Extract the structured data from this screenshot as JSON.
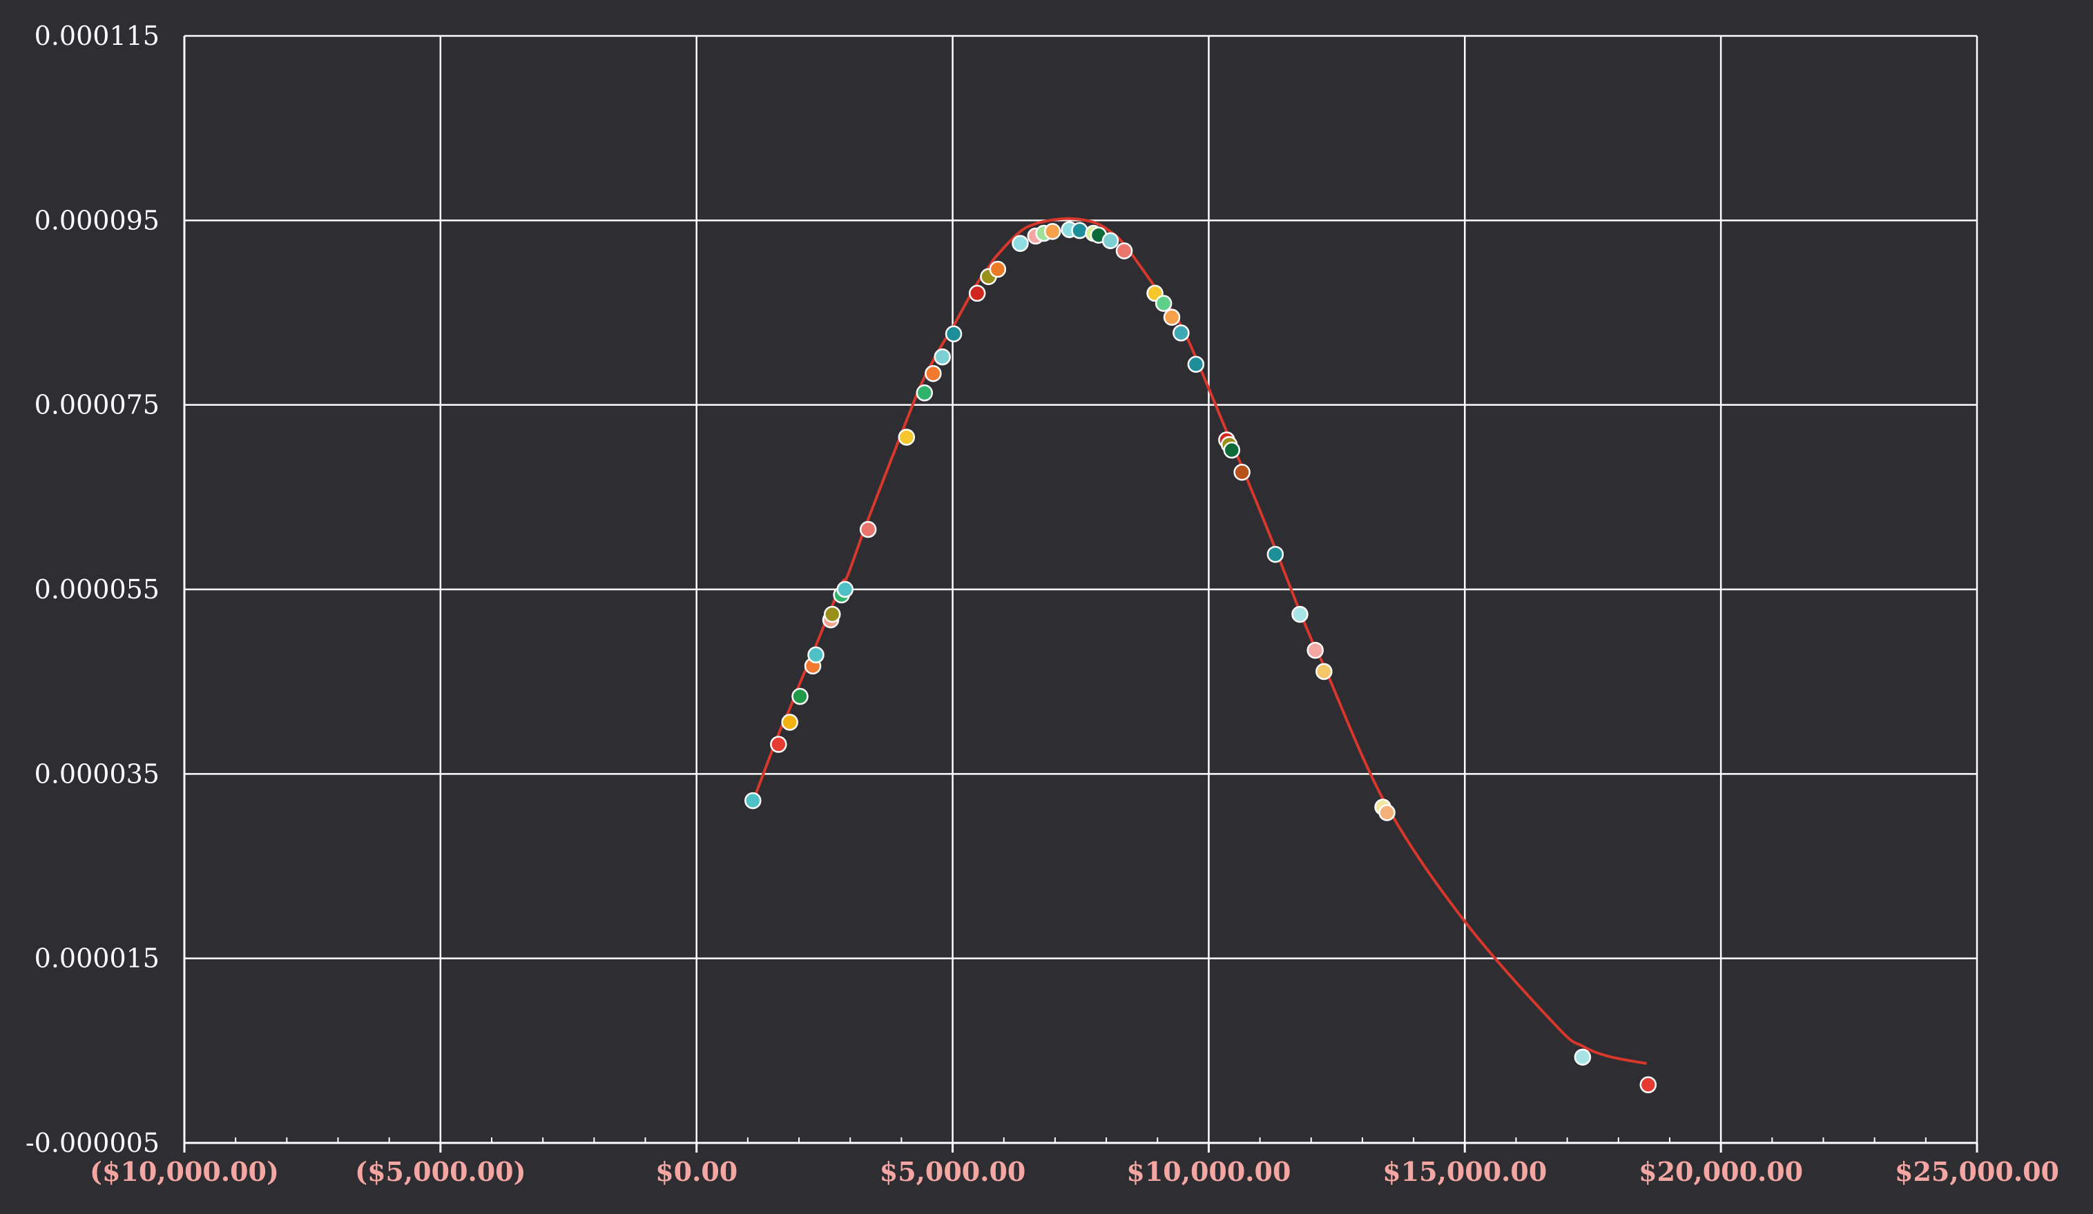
{
  "chart_data": {
    "type": "scatter",
    "title": "",
    "xlabel": "",
    "ylabel": "",
    "xlim": [
      -10000,
      25000
    ],
    "ylim": [
      -5e-06,
      0.000115
    ],
    "x_ticks": [
      -10000,
      -5000,
      0,
      5000,
      10000,
      15000,
      20000,
      25000
    ],
    "x_tick_labels": [
      "($10,000.00)",
      "($5,000.00)",
      "$0.00",
      "$5,000.00",
      "$10,000.00",
      "$15,000.00",
      "$20,000.00",
      "$25,000.00"
    ],
    "y_ticks": [
      -5e-06,
      1.5e-05,
      3.5e-05,
      5.5e-05,
      7.5e-05,
      9.5e-05,
      0.000115
    ],
    "y_tick_labels": [
      "-0.000005",
      "0.000015",
      "0.000035",
      "0.000055",
      "0.000075",
      "0.000095",
      "0.000115"
    ],
    "grid": true,
    "legend": "none",
    "colors": {
      "background": "#2e2d32",
      "grid": "#ffffff",
      "curve": "#d8382c",
      "y_tick_text": "#ffffff",
      "x_tick_text": "#f4a6a2"
    },
    "series": [
      {
        "type": "line",
        "points": [
          [
            1100,
            3.2e-05
          ],
          [
            1600,
            3.93e-05
          ],
          [
            1800,
            4.18e-05
          ],
          [
            2000,
            4.46e-05
          ],
          [
            2300,
            4.85e-05
          ],
          [
            2600,
            5.26e-05
          ],
          [
            2850,
            5.58e-05
          ],
          [
            2950,
            5.65e-05
          ],
          [
            3350,
            6.26e-05
          ],
          [
            4050,
            7.26e-05
          ],
          [
            4400,
            7.74e-05
          ],
          [
            4750,
            8.11e-05
          ],
          [
            5000,
            8.34e-05
          ],
          [
            5450,
            8.79e-05
          ],
          [
            5700,
            8.99e-05
          ],
          [
            5850,
            9.11e-05
          ],
          [
            6300,
            9.37e-05
          ],
          [
            6600,
            9.46e-05
          ],
          [
            6900,
            9.5e-05
          ],
          [
            7200,
            9.52e-05
          ],
          [
            7500,
            9.51e-05
          ],
          [
            7800,
            9.47e-05
          ],
          [
            8050,
            9.39e-05
          ],
          [
            8350,
            9.24e-05
          ],
          [
            8950,
            8.78e-05
          ],
          [
            9150,
            8.62e-05
          ],
          [
            9450,
            8.37e-05
          ],
          [
            9750,
            8.01e-05
          ],
          [
            10350,
            7.21e-05
          ],
          [
            10450,
            7.07e-05
          ],
          [
            10650,
            6.83e-05
          ],
          [
            11300,
            5.94e-05
          ],
          [
            11750,
            5.3e-05
          ],
          [
            12050,
            4.9e-05
          ],
          [
            12250,
            4.67e-05
          ],
          [
            13450,
            3.18e-05
          ],
          [
            15000,
            1.9e-05
          ],
          [
            16800,
            7.6e-06
          ],
          [
            17300,
            5.5e-06
          ],
          [
            17800,
            4.4e-06
          ],
          [
            18550,
            3.6e-06
          ]
        ]
      },
      {
        "type": "scatter",
        "points": [
          {
            "x": 1100,
            "y": 3.21e-05,
            "color": "#4fc0c6"
          },
          {
            "x": 1600,
            "y": 3.82e-05,
            "color": "#e53b33"
          },
          {
            "x": 1820,
            "y": 4.06e-05,
            "color": "#f2b212"
          },
          {
            "x": 2020,
            "y": 4.34e-05,
            "color": "#1f9a4a"
          },
          {
            "x": 2270,
            "y": 4.67e-05,
            "color": "#f27a30"
          },
          {
            "x": 2330,
            "y": 4.79e-05,
            "color": "#4fc0c6"
          },
          {
            "x": 2620,
            "y": 5.17e-05,
            "color": "#f3a28e"
          },
          {
            "x": 2650,
            "y": 5.23e-05,
            "color": "#9a8f1a"
          },
          {
            "x": 2830,
            "y": 5.44e-05,
            "color": "#2fb26a"
          },
          {
            "x": 2900,
            "y": 5.5e-05,
            "color": "#4fc0c6"
          },
          {
            "x": 3350,
            "y": 6.15e-05,
            "color": "#e8766e"
          },
          {
            "x": 4100,
            "y": 7.15e-05,
            "color": "#f5c72c"
          },
          {
            "x": 4450,
            "y": 7.63e-05,
            "color": "#2fb26a"
          },
          {
            "x": 4620,
            "y": 7.84e-05,
            "color": "#f27a30"
          },
          {
            "x": 4800,
            "y": 8.02e-05,
            "color": "#7ccfd3"
          },
          {
            "x": 5020,
            "y": 8.27e-05,
            "color": "#1e8f99"
          },
          {
            "x": 5480,
            "y": 8.71e-05,
            "color": "#d0281e"
          },
          {
            "x": 5700,
            "y": 8.89e-05,
            "color": "#9a8f1a"
          },
          {
            "x": 5880,
            "y": 8.97e-05,
            "color": "#ea7a24"
          },
          {
            "x": 6320,
            "y": 9.25e-05,
            "color": "#8fdde0"
          },
          {
            "x": 6620,
            "y": 9.33e-05,
            "color": "#f4a6a2"
          },
          {
            "x": 6780,
            "y": 9.36e-05,
            "color": "#9fe09a"
          },
          {
            "x": 6950,
            "y": 9.38e-05,
            "color": "#f5a04a"
          },
          {
            "x": 7280,
            "y": 9.4e-05,
            "color": "#8fdde0"
          },
          {
            "x": 7480,
            "y": 9.39e-05,
            "color": "#1e8f99"
          },
          {
            "x": 7750,
            "y": 9.36e-05,
            "color": "#d8ef92"
          },
          {
            "x": 7850,
            "y": 9.34e-05,
            "color": "#0f6a3a"
          },
          {
            "x": 8080,
            "y": 9.28e-05,
            "color": "#7ccfd3"
          },
          {
            "x": 8350,
            "y": 9.17e-05,
            "color": "#e8766e"
          },
          {
            "x": 8950,
            "y": 8.71e-05,
            "color": "#f5c72c"
          },
          {
            "x": 9120,
            "y": 8.6e-05,
            "color": "#5fd08a"
          },
          {
            "x": 9280,
            "y": 8.45e-05,
            "color": "#f5a04a"
          },
          {
            "x": 9460,
            "y": 8.28e-05,
            "color": "#3ea9b4"
          },
          {
            "x": 9750,
            "y": 7.94e-05,
            "color": "#1e8f99"
          },
          {
            "x": 10350,
            "y": 7.12e-05,
            "color": "#d0281e"
          },
          {
            "x": 10400,
            "y": 7.07e-05,
            "color": "#9a8f1a"
          },
          {
            "x": 10450,
            "y": 7.01e-05,
            "color": "#0f6a3a"
          },
          {
            "x": 10650,
            "y": 6.77e-05,
            "color": "#b8521c"
          },
          {
            "x": 11300,
            "y": 5.88e-05,
            "color": "#1e8f99"
          },
          {
            "x": 11780,
            "y": 5.23e-05,
            "color": "#a8e4e6"
          },
          {
            "x": 12080,
            "y": 4.84e-05,
            "color": "#f4a6a2"
          },
          {
            "x": 12250,
            "y": 4.61e-05,
            "color": "#f5c76a"
          },
          {
            "x": 13400,
            "y": 3.14e-05,
            "color": "#f0e6a0"
          },
          {
            "x": 13480,
            "y": 3.08e-05,
            "color": "#f5b07a"
          },
          {
            "x": 17300,
            "y": 4.3e-06,
            "color": "#a8e4e6"
          },
          {
            "x": 18580,
            "y": 1.3e-06,
            "color": "#e53b33"
          }
        ]
      }
    ]
  }
}
